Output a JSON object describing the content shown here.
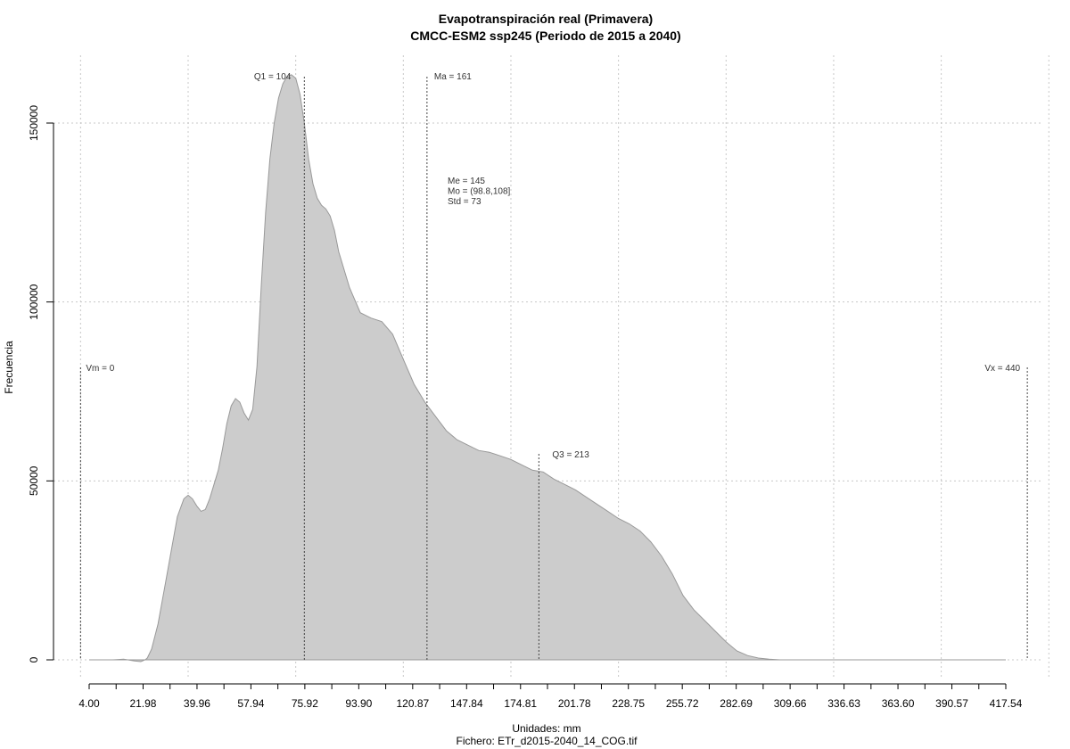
{
  "chart_data": {
    "type": "area",
    "title": "Evapotranspiración real (Primavera)",
    "subtitle": "CMCC-ESM2 ssp245 (Periodo de 2015 a 2040)",
    "xlabel": "Unidades: mm",
    "ylabel": "Frecuencia",
    "file_label": "Fichero: ETr_d2015-2040_14_COG.tif",
    "xlim": [
      4.0,
      430.0
    ],
    "ylim": [
      0,
      160000
    ],
    "x_tick_labels": [
      "4.00",
      "21.98",
      "39.96",
      "57.94",
      "75.92",
      "93.90",
      "120.87",
      "147.84",
      "174.81",
      "201.78",
      "228.75",
      "255.72",
      "282.69",
      "309.66",
      "336.63",
      "363.60",
      "390.57",
      "417.54"
    ],
    "y_ticks": [
      0,
      50000,
      100000,
      150000
    ],
    "y_tick_labels": [
      "0",
      "50000",
      "100000",
      "150000"
    ],
    "grid": true,
    "fill_color": "#cccccc",
    "line_color": "#999999",
    "x": [
      4,
      10,
      15,
      20,
      22,
      25,
      28,
      30,
      31,
      33,
      36,
      39,
      42,
      45,
      48,
      50,
      52,
      54,
      56,
      58,
      60,
      62,
      64,
      66,
      68,
      70,
      72,
      74,
      76,
      78,
      80,
      82,
      84,
      86,
      88,
      90,
      92,
      94,
      96,
      98,
      100,
      102,
      104,
      106,
      108,
      110,
      112,
      114,
      116,
      118,
      120,
      125,
      130,
      135,
      140,
      145,
      150,
      155,
      160,
      165,
      170,
      175,
      180,
      185,
      190,
      195,
      200,
      205,
      210,
      215,
      220,
      225,
      230,
      235,
      240,
      245,
      250,
      255,
      260,
      265,
      270,
      275,
      280,
      285,
      290,
      295,
      300,
      305,
      310,
      315,
      320,
      325,
      330,
      335,
      340,
      345,
      350,
      355,
      360,
      365,
      370,
      375,
      380,
      385,
      390,
      395,
      400,
      410,
      420,
      430
    ],
    "y": [
      0,
      0,
      0,
      200,
      0,
      -300,
      -500,
      0,
      500,
      3000,
      10000,
      20000,
      30000,
      40000,
      45000,
      46000,
      45000,
      43000,
      41500,
      42000,
      45000,
      49000,
      53000,
      59000,
      66000,
      71000,
      73000,
      72000,
      69000,
      67000,
      70000,
      82000,
      105000,
      125000,
      140000,
      150000,
      157000,
      161000,
      163000,
      163500,
      162500,
      158000,
      150000,
      140000,
      133000,
      129000,
      127000,
      126000,
      124000,
      120000,
      114000,
      104000,
      97000,
      95500,
      94500,
      91000,
      84000,
      77000,
      72000,
      68000,
      64000,
      61500,
      60000,
      58500,
      58000,
      57000,
      56000,
      54500,
      53000,
      52500,
      50500,
      49000,
      47500,
      45500,
      43500,
      41500,
      39500,
      38000,
      36000,
      33000,
      29000,
      24000,
      18000,
      14000,
      11000,
      8000,
      5000,
      2500,
      1200,
      500,
      200,
      0,
      0,
      0,
      0,
      0,
      0,
      0,
      0,
      0,
      0,
      0,
      0,
      0,
      0,
      0,
      0,
      0,
      0,
      0
    ],
    "annotations": {
      "q1": {
        "label": "Q1 = 104",
        "value": 104
      },
      "ma": {
        "label": "Ma = 161",
        "value": 161
      },
      "q3": {
        "label": "Q3 = 213",
        "value": 213
      },
      "vm": {
        "label": "Vm = 0",
        "value": 0
      },
      "vx": {
        "label": "Vx = 440",
        "value": 440
      },
      "stats": [
        "Me = 145",
        "Mo = (98.8,108]",
        "Std = 73"
      ]
    }
  }
}
